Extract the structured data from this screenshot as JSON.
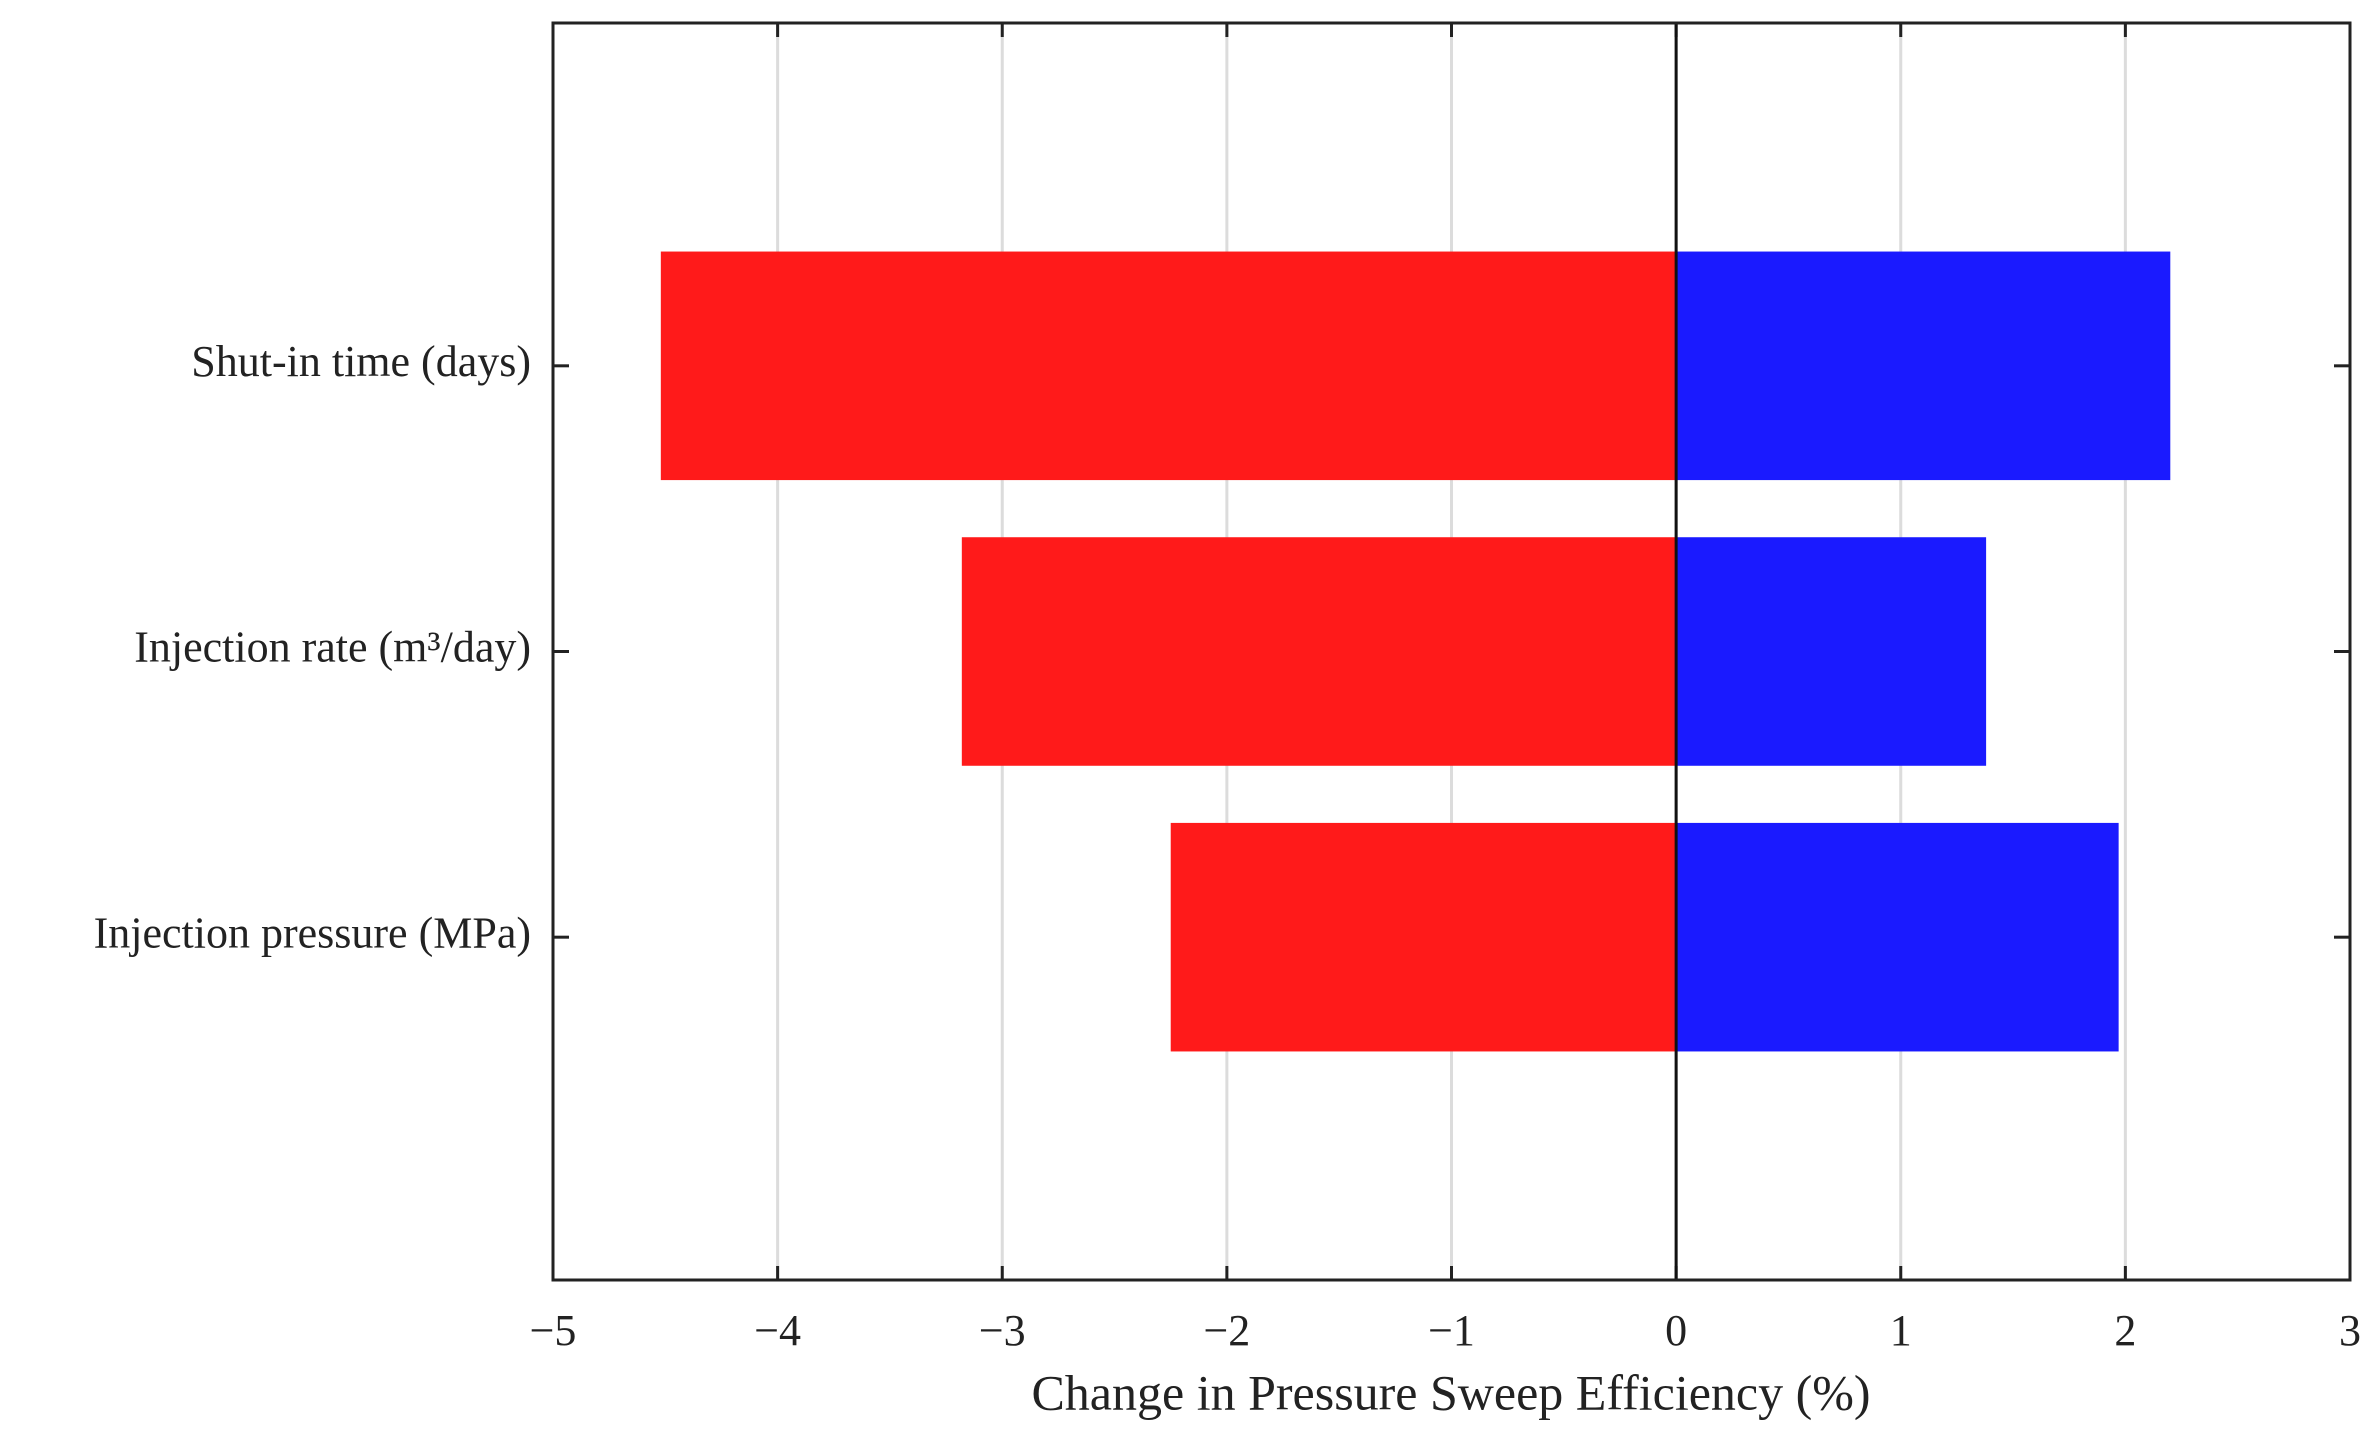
{
  "chart_data": {
    "type": "tornado",
    "categories": [
      "Shut-in time (days)",
      "Injection rate (m³/day)",
      "Injection pressure (MPa)"
    ],
    "series": [
      {
        "color": "#ff1a1a",
        "values": [
          -4.52,
          -3.18,
          -2.25
        ]
      },
      {
        "color": "#1a1aff",
        "values": [
          2.2,
          1.38,
          1.97
        ]
      }
    ],
    "xlabel": "Change in Pressure Sweep Efficiency (%)",
    "xlim": [
      -5,
      3
    ],
    "xticks": [
      {
        "value": -5,
        "label": "−5"
      },
      {
        "value": -4,
        "label": "−4"
      },
      {
        "value": -3,
        "label": "−3"
      },
      {
        "value": -2,
        "label": "−2"
      },
      {
        "value": -1,
        "label": "−1"
      },
      0,
      1,
      2,
      3
    ],
    "grid": true
  }
}
